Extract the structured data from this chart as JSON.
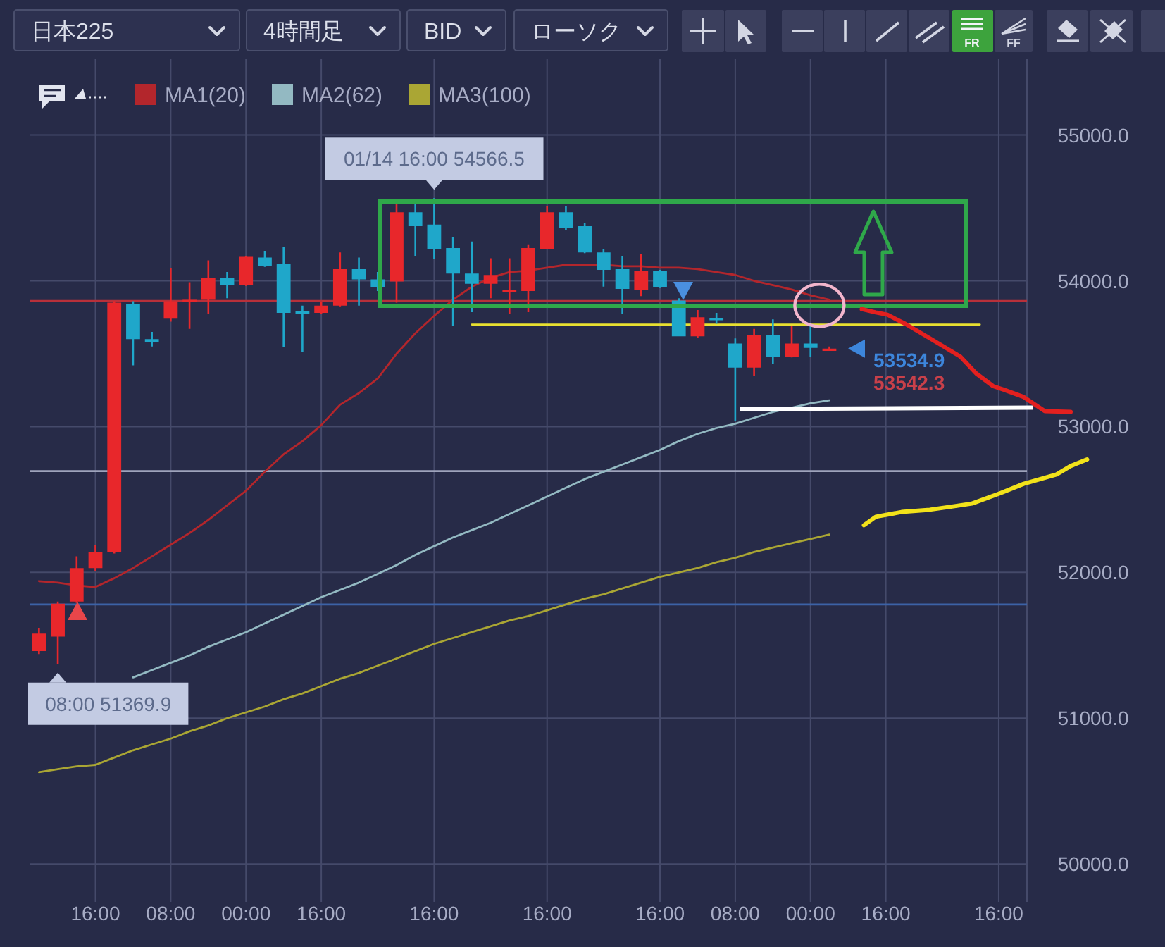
{
  "chart_data": {
    "type": "candlestick",
    "title": "日本225",
    "categories": [
      null,
      null,
      null,
      "16:00",
      null,
      null,
      null,
      "08:00",
      null,
      null,
      null,
      "00:00",
      null,
      null,
      null,
      "16:00",
      null,
      null,
      null,
      null,
      null,
      "16:00",
      null,
      null,
      null,
      null,
      null,
      "16:00",
      null,
      null,
      null,
      null,
      null,
      "16:00",
      null,
      null,
      null,
      "08:00",
      null,
      null,
      null,
      "00:00",
      null,
      null,
      null,
      "16:00",
      null,
      null,
      null,
      null,
      null,
      "16:00",
      null
    ],
    "ohlc": [
      [
        51460,
        51620,
        51440,
        51580
      ],
      [
        51560,
        51800,
        51369.9,
        51785
      ],
      [
        51800,
        52110,
        51790,
        52030
      ],
      [
        52030,
        52190,
        52010,
        52140
      ],
      [
        52140,
        53860,
        52130,
        53850
      ],
      [
        53840,
        53860,
        53420,
        53600
      ],
      [
        53600,
        53650,
        53550,
        53580
      ],
      [
        53740,
        54090,
        53720,
        53860
      ],
      [
        53860,
        53990,
        53670,
        53870
      ],
      [
        53870,
        54140,
        53770,
        54020
      ],
      [
        54020,
        54060,
        53880,
        53970
      ],
      [
        53970,
        54170,
        53965,
        54165
      ],
      [
        54160,
        54205,
        54095,
        54100
      ],
      [
        54115,
        54235,
        53545,
        53780
      ],
      [
        53790,
        53830,
        53515,
        53780
      ],
      [
        53780,
        53855,
        53775,
        53830
      ],
      [
        53830,
        54195,
        53825,
        54080
      ],
      [
        54080,
        54160,
        53830,
        54010
      ],
      [
        54010,
        54060,
        53930,
        53955
      ],
      [
        53995,
        54525,
        53850,
        54470
      ],
      [
        54470,
        54525,
        54170,
        54375
      ],
      [
        54385,
        54566.5,
        54150,
        54220
      ],
      [
        54225,
        54300,
        53690,
        54050
      ],
      [
        54050,
        54270,
        53785,
        53980
      ],
      [
        53980,
        54155,
        53880,
        54040
      ],
      [
        53930,
        54155,
        53770,
        53940
      ],
      [
        53930,
        54250,
        53785,
        54225
      ],
      [
        54220,
        54510,
        54215,
        54470
      ],
      [
        54470,
        54515,
        54350,
        54365
      ],
      [
        54375,
        54395,
        54190,
        54195
      ],
      [
        54195,
        54220,
        53960,
        54075
      ],
      [
        54080,
        54170,
        53770,
        53945
      ],
      [
        53935,
        54185,
        53895,
        54070
      ],
      [
        54070,
        54075,
        53950,
        53955
      ],
      [
        53865,
        53880,
        53620,
        53620
      ],
      [
        53620,
        53800,
        53610,
        53750
      ],
      [
        53745,
        53780,
        53705,
        53740
      ],
      [
        53570,
        53605,
        53040,
        53405
      ],
      [
        53405,
        53670,
        53350,
        53630
      ],
      [
        53630,
        53735,
        53430,
        53480
      ],
      [
        53480,
        53690,
        53475,
        53570
      ],
      [
        53570,
        53710,
        53480,
        53540
      ],
      [
        53530,
        53550,
        53525,
        53534.9
      ],
      null,
      null,
      null,
      null,
      null,
      null,
      null,
      null,
      null,
      null
    ],
    "colors": [
      "#e8272b",
      "#e8272b",
      "#e8272b",
      "#e8272b",
      "#e8272b",
      "#1fa7ca",
      "#1fa7ca",
      "#e8272b",
      "#e8272b",
      "#e8272b",
      "#1fa7ca",
      "#e8272b",
      "#1fa7ca",
      "#1fa7ca",
      "#1fa7ca",
      "#e8272b",
      "#e8272b",
      "#1fa7ca",
      "#1fa7ca",
      "#e8272b",
      "#1fa7ca",
      "#1fa7ca",
      "#1fa7ca",
      "#1fa7ca",
      "#e8272b",
      "#e8272b",
      "#e8272b",
      "#e8272b",
      "#1fa7ca",
      "#1fa7ca",
      "#1fa7ca",
      "#1fa7ca",
      "#e8272b",
      "#1fa7ca",
      "#1fa7ca",
      "#e8272b",
      "#1fa7ca",
      "#1fa7ca",
      "#e8272b",
      "#1fa7ca",
      "#e8272b",
      "#1fa7ca",
      "#e8272b",
      null,
      null,
      null,
      null,
      null,
      null,
      null,
      null,
      null,
      null
    ],
    "series": [
      {
        "name": "MA1(20)",
        "type": "line",
        "color": "#b3262c",
        "values": [
          51940,
          51930,
          51910,
          51900,
          51960,
          52030,
          52110,
          52190,
          52270,
          52360,
          52460,
          52560,
          52690,
          52810,
          52900,
          53010,
          53150,
          53230,
          53330,
          53500,
          53640,
          53760,
          53870,
          53960,
          54020,
          54060,
          54070,
          54090,
          54110,
          54110,
          54110,
          54100,
          54100,
          54090,
          54090,
          54080,
          54060,
          54040,
          54000,
          53970,
          53940,
          53900,
          53870,
          null,
          null,
          null,
          null,
          null,
          null,
          null,
          null,
          null,
          null
        ]
      },
      {
        "name": "MA2(62)",
        "type": "line",
        "color": "#93b9c2",
        "values": [
          null,
          null,
          null,
          null,
          null,
          51280,
          51330,
          51380,
          51430,
          51490,
          51540,
          51590,
          51650,
          51710,
          51770,
          51830,
          51880,
          51930,
          51990,
          52050,
          52120,
          52180,
          52240,
          52290,
          52340,
          52400,
          52460,
          52520,
          52580,
          52640,
          52690,
          52740,
          52790,
          52840,
          52900,
          52950,
          52990,
          53020,
          53060,
          53100,
          53130,
          53160,
          53180,
          null,
          null,
          null,
          null,
          null,
          null,
          null,
          null,
          null,
          null
        ]
      },
      {
        "name": "MA3(100)",
        "type": "line",
        "color": "#aaa634",
        "values": [
          50630,
          50650,
          50670,
          50680,
          50730,
          50780,
          50820,
          50860,
          50910,
          50950,
          51000,
          51040,
          51080,
          51130,
          51170,
          51220,
          51270,
          51310,
          51360,
          51410,
          51460,
          51510,
          51550,
          51590,
          51630,
          51670,
          51700,
          51740,
          51780,
          51820,
          51850,
          51890,
          51930,
          51970,
          52000,
          52030,
          52070,
          52100,
          52140,
          52170,
          52200,
          52230,
          52260,
          null,
          null,
          null,
          null,
          null,
          null,
          null,
          null,
          null,
          null
        ]
      },
      {
        "type": "line",
        "color": "#e8e030",
        "values": [
          null,
          null,
          null,
          null,
          null,
          null,
          null,
          null,
          null,
          null,
          null,
          null,
          null,
          null,
          null,
          null,
          null,
          null,
          null,
          null,
          null,
          null,
          null,
          53700,
          53700,
          53700,
          53700,
          53700,
          53700,
          53700,
          53700,
          53700,
          53700,
          53700,
          null,
          null,
          53700,
          53700,
          53700,
          53700,
          53700,
          53700,
          53700,
          53700,
          53700,
          53700,
          53700,
          53700,
          53700,
          53700,
          53700,
          null,
          null
        ]
      }
    ],
    "ylim": [
      49740,
      55520
    ],
    "yticks": [
      {
        "value": 50000,
        "label": "50000.0"
      },
      {
        "value": 51000,
        "label": "51000.0"
      },
      {
        "value": 52000,
        "label": "52000.0"
      },
      {
        "value": 53000,
        "label": "53000.0"
      },
      {
        "value": 54000,
        "label": "54000.0"
      },
      {
        "value": 55000,
        "label": "55000.0"
      }
    ],
    "grid": true,
    "legend": "top left",
    "ref_lines": [
      {
        "axis": "y",
        "value": 53862,
        "color": "#b8303a"
      },
      {
        "axis": "y",
        "value": 52695,
        "color": "#9ea3bb"
      },
      {
        "axis": "y",
        "value": 51780,
        "color": "#3c62a6"
      }
    ],
    "annotations": [
      "4時間足",
      "BID",
      "ローソク",
      "FR",
      "FF",
      "01/14 16:00 54566.5",
      "08:00 51369.9",
      "53542.3",
      "53534.9"
    ]
  }
}
